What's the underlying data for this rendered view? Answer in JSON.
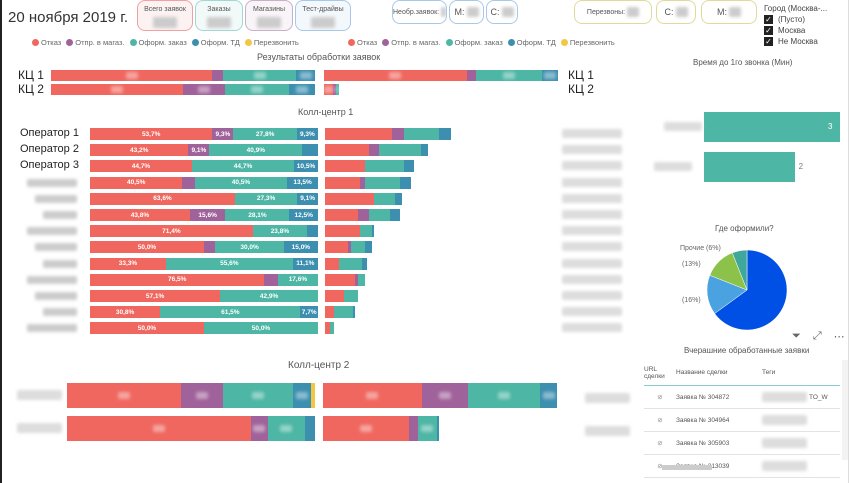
{
  "header": {
    "date": "20 ноября 2019 г."
  },
  "cards": [
    {
      "label": "Всего заявок",
      "color": "#F2A0A0"
    },
    {
      "label": "Заказы",
      "color": "#9FD8D0"
    },
    {
      "label": "Магазины",
      "color": "#C9AFC7"
    },
    {
      "label": "Тест-драйвы",
      "color": "#A8C8E8"
    }
  ],
  "counters1": {
    "unprocessed": "Необр.заявок:",
    "m": "М:",
    "s": "С:",
    "color": "#A8C8E8"
  },
  "counters2": {
    "callbacks": "Перезвоны:",
    "s": "С:",
    "m": "М:",
    "color": "#E0DB9A"
  },
  "legend": [
    {
      "label": "Отказ",
      "color": "#F0675F"
    },
    {
      "label": "Отпр. в магаз.",
      "color": "#A0629A"
    },
    {
      "label": "Оформ. заказ",
      "color": "#4DB6A4"
    },
    {
      "label": "Оформ. ТД",
      "color": "#3D8FB0"
    },
    {
      "label": "Перезвонить",
      "color": "#F2C744"
    }
  ],
  "filter": {
    "title": "Город (Москва-...",
    "options": [
      {
        "label": "(Пусто)",
        "checked": true
      },
      {
        "label": "Москва",
        "checked": true
      },
      {
        "label": "Не Москва",
        "checked": true
      }
    ]
  },
  "chart_data": [
    {
      "type": "bar",
      "title": "Результаты обработки заявок",
      "stacked": "percent",
      "categories": [
        "КЦ 1",
        "КЦ 2"
      ],
      "series": [
        {
          "name": "Отказ",
          "values": [
            61,
            50
          ]
        },
        {
          "name": "Отпр. в магаз.",
          "values": [
            4,
            16
          ]
        },
        {
          "name": "Оформ. заказ",
          "values": [
            28,
            24
          ]
        },
        {
          "name": "Оформ. ТД",
          "values": [
            7,
            10
          ]
        },
        {
          "name": "Перезвонить",
          "values": [
            0,
            0
          ]
        }
      ]
    },
    {
      "type": "bar",
      "title": "Колл-центр 1",
      "stacked": "percent",
      "categories": [
        "Оператор 1",
        "Оператор 2",
        "Оператор 3",
        "",
        "",
        "",
        "",
        "",
        "",
        "",
        "",
        "",
        ""
      ],
      "series": [
        {
          "name": "Отказ",
          "values": [
            53.7,
            43.2,
            44.7,
            40.5,
            63.6,
            43.8,
            71.4,
            50.0,
            33.3,
            76.5,
            57.1,
            30.8,
            50.0
          ]
        },
        {
          "name": "Отпр. в магаз.",
          "values": [
            9.3,
            9.1,
            0,
            5.4,
            0,
            15.6,
            0,
            5.0,
            0,
            5.9,
            0,
            0,
            0
          ]
        },
        {
          "name": "Оформ. заказ",
          "values": [
            27.8,
            40.9,
            44.7,
            40.5,
            27.3,
            28.1,
            23.8,
            30.0,
            55.6,
            17.6,
            42.9,
            61.5,
            50.0
          ]
        },
        {
          "name": "Оформ. ТД",
          "values": [
            9.3,
            6.8,
            10.5,
            13.5,
            9.1,
            12.5,
            4.8,
            15.0,
            11.1,
            0,
            0,
            7.7,
            0
          ]
        }
      ],
      "labels": [
        [
          "53,7%",
          "9,3%",
          "27,8%",
          "9,3%"
        ],
        [
          "43,2%",
          "9,1%",
          "40,9%",
          ""
        ],
        [
          "44,7%",
          "",
          "44,7%",
          "10,5%"
        ],
        [
          "40,5%",
          "",
          "40,5%",
          "13,5%"
        ],
        [
          "63,6%",
          "",
          "27,3%",
          "9,1%"
        ],
        [
          "43,8%",
          "15,6%",
          "28,1%",
          "12,5%"
        ],
        [
          "71,4%",
          "",
          "23,8%",
          ""
        ],
        [
          "50,0%",
          "",
          "30,0%",
          "15,0%"
        ],
        [
          "33,3%",
          "",
          "55,6%",
          "11,1%"
        ],
        [
          "76,5%",
          "",
          "17,6%",
          ""
        ],
        [
          "57,1%",
          "",
          "42,9%",
          ""
        ],
        [
          "30,8%",
          "",
          "61,5%",
          "7,7%"
        ],
        [
          "50,0%",
          "",
          "50,0%",
          ""
        ]
      ],
      "totals": [
        54,
        44,
        38,
        37,
        33,
        32,
        21,
        20,
        18,
        17,
        14,
        13,
        4
      ]
    },
    {
      "type": "bar",
      "title": "Колл-центр 2",
      "stacked": "percent",
      "categories": [
        "",
        ""
      ],
      "series": [
        {
          "name": "Отказ",
          "values": [
            46,
            74
          ]
        },
        {
          "name": "Отпр. в магаз.",
          "values": [
            17,
            7
          ]
        },
        {
          "name": "Оформ. заказ",
          "values": [
            28,
            15
          ]
        },
        {
          "name": "Оформ. ТД",
          "values": [
            7.5,
            4
          ]
        },
        {
          "name": "Перезвонить",
          "values": [
            1.5,
            0
          ]
        }
      ],
      "right_series": [
        [
          41,
          19,
          30,
          7,
          0
        ],
        [
          37,
          4,
          8,
          1,
          0
        ]
      ]
    },
    {
      "type": "bar",
      "title": "Время до 1го звонка (Мин)",
      "orientation": "horizontal",
      "values": [
        3,
        2
      ],
      "labels": [
        "3",
        "2"
      ],
      "color": "#4DB6A4"
    },
    {
      "type": "pie",
      "title": "Где оформили?",
      "slices": [
        {
          "label": "",
          "value": 65,
          "color": "#0050E6"
        },
        {
          "label": "(16%)",
          "value": 16,
          "color": "#4AA3E0"
        },
        {
          "label": "(13%)",
          "value": 13,
          "color": "#8DC24A"
        },
        {
          "label": "Прочие (6%)",
          "value": 6,
          "color": "#3FA89A"
        }
      ]
    }
  ],
  "table": {
    "title": "Вчерашние обработанные заявки",
    "columns": [
      "URL сделки",
      "Название сделки",
      "Теги"
    ],
    "rows": [
      {
        "name": "Заявка № 304872",
        "tag": "TO_W"
      },
      {
        "name": "Заявка № 304964",
        "tag": ""
      },
      {
        "name": "Заявка № 305903",
        "tag": ""
      },
      {
        "name": "Заявка № 313039",
        "tag": ""
      }
    ]
  }
}
